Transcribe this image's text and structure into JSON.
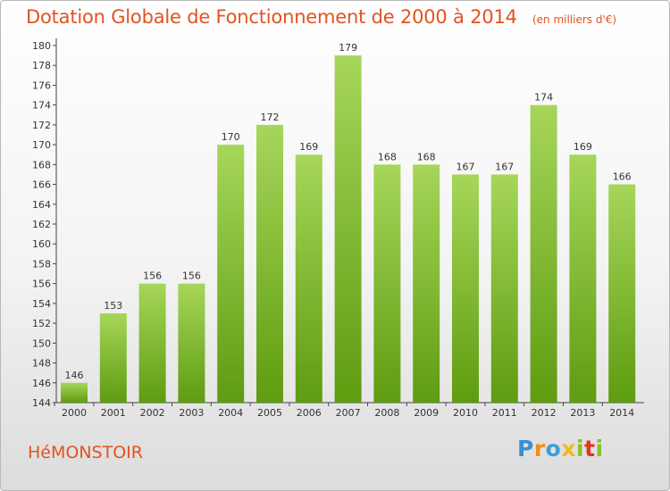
{
  "title": "Dotation Globale de Fonctionnement de 2000 à 2014",
  "unit_note": "(en milliers d'€)",
  "commune": "HéMONSTOIR",
  "logo": {
    "text": "Proxiti",
    "colors": [
      "#3a8fd0",
      "#f28c1b",
      "#3aa0d6",
      "#f3b81c",
      "#8cbf2a",
      "#e6341f",
      "#8cbf2a"
    ]
  },
  "colors": {
    "bar_light": "#a6d65a",
    "bar_dark": "#5e9c10",
    "title": "#e2531f"
  },
  "chart_data": {
    "type": "bar",
    "title": "Dotation Globale de Fonctionnement de 2000 à 2014",
    "xlabel": "",
    "ylabel": "",
    "categories": [
      "2000",
      "2001",
      "2002",
      "2003",
      "2004",
      "2005",
      "2006",
      "2007",
      "2008",
      "2009",
      "2010",
      "2011",
      "2012",
      "2013",
      "2014"
    ],
    "values": [
      146,
      153,
      156,
      156,
      170,
      172,
      169,
      179,
      168,
      168,
      167,
      167,
      174,
      169,
      166
    ],
    "ylim": [
      144,
      180
    ],
    "yticks": [
      144,
      146,
      148,
      150,
      152,
      154,
      156,
      158,
      160,
      162,
      164,
      166,
      168,
      170,
      172,
      174,
      176,
      178,
      180
    ],
    "grid": false,
    "legend": "none"
  }
}
